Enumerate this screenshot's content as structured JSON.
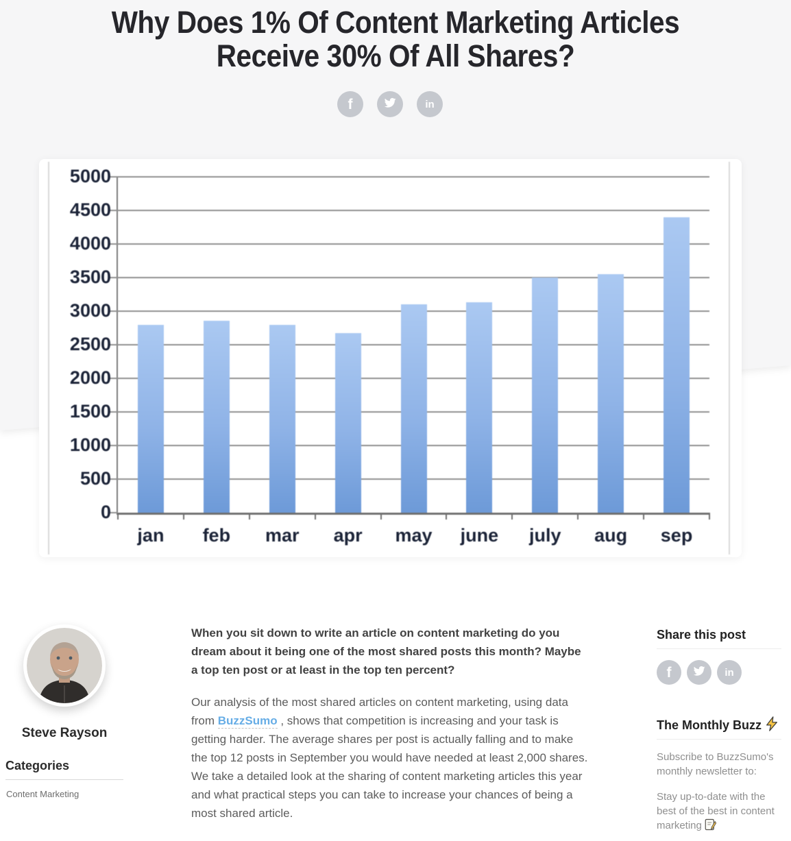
{
  "page": {
    "title_line1": "Why Does 1% Of Content Marketing Articles",
    "title_line2": "Receive 30% Of All Shares?"
  },
  "colors": {
    "hero_bg": "#f6f6f7",
    "social_circle": "#c5c8ce",
    "link_blue": "#66ade6",
    "bar_top": "#abc9f2",
    "bar_bottom": "#6d9ad8"
  },
  "share_icons": [
    "facebook-icon",
    "twitter-icon",
    "linkedin-icon"
  ],
  "chart_data": {
    "type": "bar",
    "categories": [
      "jan",
      "feb",
      "mar",
      "apr",
      "may",
      "june",
      "july",
      "aug",
      "sep"
    ],
    "values": [
      2800,
      2860,
      2800,
      2670,
      3100,
      3130,
      3500,
      3550,
      4400
    ],
    "title": "",
    "xlabel": "",
    "ylabel": "",
    "ylim": [
      0,
      5000
    ],
    "ytick_step": 500,
    "grid": true,
    "legend": "none"
  },
  "author": {
    "name": "Steve Rayson"
  },
  "categories": {
    "heading": "Categories",
    "items": [
      "Content Marketing"
    ]
  },
  "article": {
    "lead": "When you sit down to write an article on content marketing do you dream about it being one of the most shared posts this month? Maybe a top ten post or at least in the top ten percent?",
    "p2_before": "Our analysis of the most shared articles on content marketing, using data from ",
    "p2_link": "BuzzSumo",
    "p2_after": " , shows that competition is increasing and your task is getting harder. The average shares per post is actually falling and to make the top 12 posts in September you would have needed at least 2,000 shares. We take a detailed look at the sharing of content marketing articles this year and what practical steps you can take to increase your chances of being a most shared article."
  },
  "sidebar": {
    "share_heading": "Share this post",
    "newsletter_heading": "The Monthly Buzz",
    "newsletter_sub": "Subscribe to BuzzSumo's monthly newsletter to:",
    "newsletter_benefit": "Stay up-to-date with the best of the best in content marketing"
  }
}
